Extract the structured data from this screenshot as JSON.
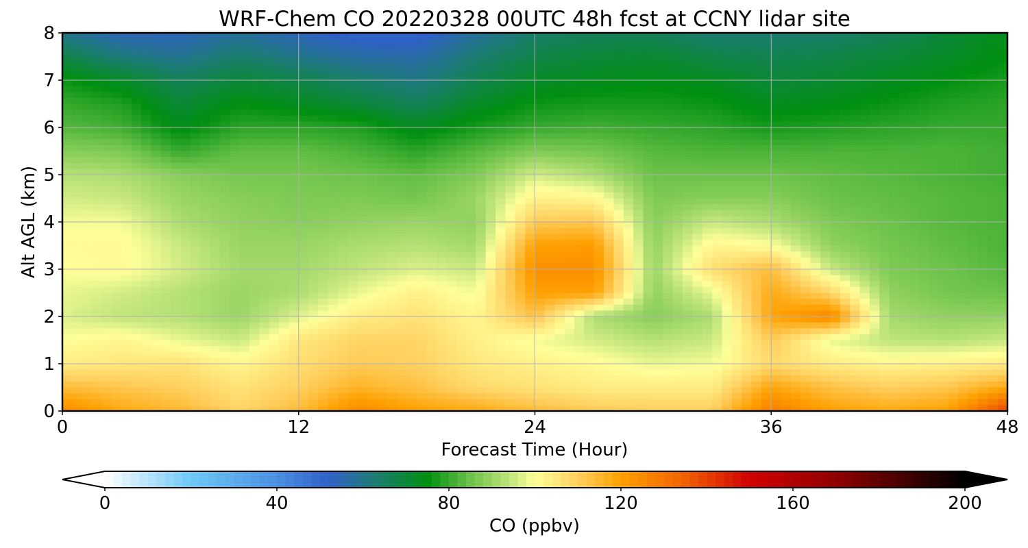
{
  "chart_data": {
    "type": "heatmap",
    "title": "WRF-Chem CO  20220328 00UTC 48h fcst at CCNY lidar site",
    "xlabel": "Forecast Time (Hour)",
    "ylabel": "Alt AGL (km)",
    "xlim": [
      0,
      48
    ],
    "ylim": [
      0,
      8
    ],
    "x_ticks": [
      "0",
      "12",
      "24",
      "36",
      "48"
    ],
    "y_ticks": [
      "0",
      "1",
      "2",
      "3",
      "4",
      "5",
      "6",
      "7",
      "8"
    ],
    "grid": true,
    "colorbar": {
      "label": "CO  (ppbv)",
      "ticks": [
        "0",
        "40",
        "80",
        "120",
        "160",
        "200"
      ],
      "range": [
        0,
        200
      ],
      "extend": "both",
      "orientation": "horizontal",
      "stops": [
        {
          "v": 0,
          "c": "#ffffff"
        },
        {
          "v": 20,
          "c": "#6ec8f5"
        },
        {
          "v": 40,
          "c": "#4a90e2"
        },
        {
          "v": 52,
          "c": "#3060c8"
        },
        {
          "v": 62,
          "c": "#1e7a7a"
        },
        {
          "v": 75,
          "c": "#009010"
        },
        {
          "v": 85,
          "c": "#6cc24a"
        },
        {
          "v": 95,
          "c": "#c8e880"
        },
        {
          "v": 100,
          "c": "#ffff99"
        },
        {
          "v": 110,
          "c": "#ffd060"
        },
        {
          "v": 120,
          "c": "#ffa000"
        },
        {
          "v": 135,
          "c": "#f06000"
        },
        {
          "v": 150,
          "c": "#d00000"
        },
        {
          "v": 170,
          "c": "#900000"
        },
        {
          "v": 190,
          "c": "#300000"
        },
        {
          "v": 200,
          "c": "#000000"
        }
      ]
    },
    "field_points": {
      "x": [
        0,
        3,
        6,
        9,
        12,
        15,
        18,
        21,
        24,
        27,
        30,
        33,
        36,
        39,
        42,
        45,
        48
      ],
      "y": [
        0,
        0.5,
        1,
        1.5,
        2,
        2.5,
        3,
        3.5,
        4,
        4.5,
        5,
        5.5,
        6,
        6.5,
        7,
        7.5,
        8
      ],
      "z": [
        [
          125,
          118,
          115,
          109,
          114,
          125,
          120,
          118,
          114,
          111,
          110,
          110,
          128,
          120,
          118,
          120,
          140
        ],
        [
          114,
          112,
          110,
          106,
          110,
          116,
          113,
          108,
          106,
          104,
          104,
          104,
          119,
          113,
          110,
          112,
          118
        ],
        [
          104,
          105,
          106,
          102,
          107,
          111,
          110,
          105,
          103,
          101,
          98,
          99,
          108,
          104,
          102,
          103,
          104
        ],
        [
          100,
          102,
          98,
          95,
          105,
          109,
          109,
          103,
          99,
          96,
          93,
          95,
          111,
          98,
          94,
          93,
          95
        ],
        [
          97,
          94,
          93,
          90,
          97,
          104,
          106,
          102,
          113,
          92,
          88,
          92,
          119,
          126,
          91,
          89,
          89
        ],
        [
          98,
          96,
          93,
          90,
          92,
          98,
          103,
          99,
          120,
          120,
          89,
          98,
          118,
          109,
          89,
          86,
          85
        ],
        [
          100,
          101,
          96,
          91,
          91,
          94,
          97,
          95,
          124,
          124,
          90,
          107,
          114,
          95,
          87,
          85,
          83
        ],
        [
          101,
          101,
          95,
          90,
          90,
          92,
          93,
          91,
          120,
          121,
          89,
          102,
          100,
          89,
          86,
          84,
          82
        ],
        [
          99,
          99,
          92,
          89,
          88,
          89,
          90,
          89,
          111,
          112,
          88,
          95,
          92,
          87,
          85,
          83,
          82
        ],
        [
          96,
          95,
          90,
          88,
          87,
          87,
          86,
          90,
          103,
          102,
          87,
          88,
          88,
          85,
          84,
          83,
          82
        ],
        [
          93,
          92,
          88,
          86,
          86,
          85,
          84,
          87,
          96,
          92,
          85,
          85,
          85,
          84,
          83,
          82,
          81
        ],
        [
          88,
          87,
          80,
          84,
          84,
          82,
          79,
          83,
          87,
          86,
          83,
          82,
          82,
          82,
          82,
          82,
          81
        ],
        [
          83,
          81,
          74,
          79,
          79,
          78,
          73,
          77,
          80,
          81,
          80,
          79,
          77,
          78,
          79,
          80,
          80
        ],
        [
          80,
          78,
          70,
          75,
          73,
          70,
          66,
          72,
          76,
          77,
          77,
          76,
          73,
          74,
          76,
          78,
          79
        ],
        [
          76,
          72,
          66,
          70,
          68,
          64,
          61,
          67,
          72,
          73,
          74,
          73,
          70,
          71,
          73,
          75,
          77
        ],
        [
          68,
          62,
          59,
          64,
          60,
          57,
          56,
          63,
          68,
          70,
          71,
          68,
          67,
          68,
          70,
          72,
          75
        ],
        [
          60,
          54,
          54,
          58,
          54,
          50,
          50,
          58,
          64,
          66,
          66,
          63,
          63,
          64,
          66,
          70,
          74
        ]
      ]
    }
  }
}
